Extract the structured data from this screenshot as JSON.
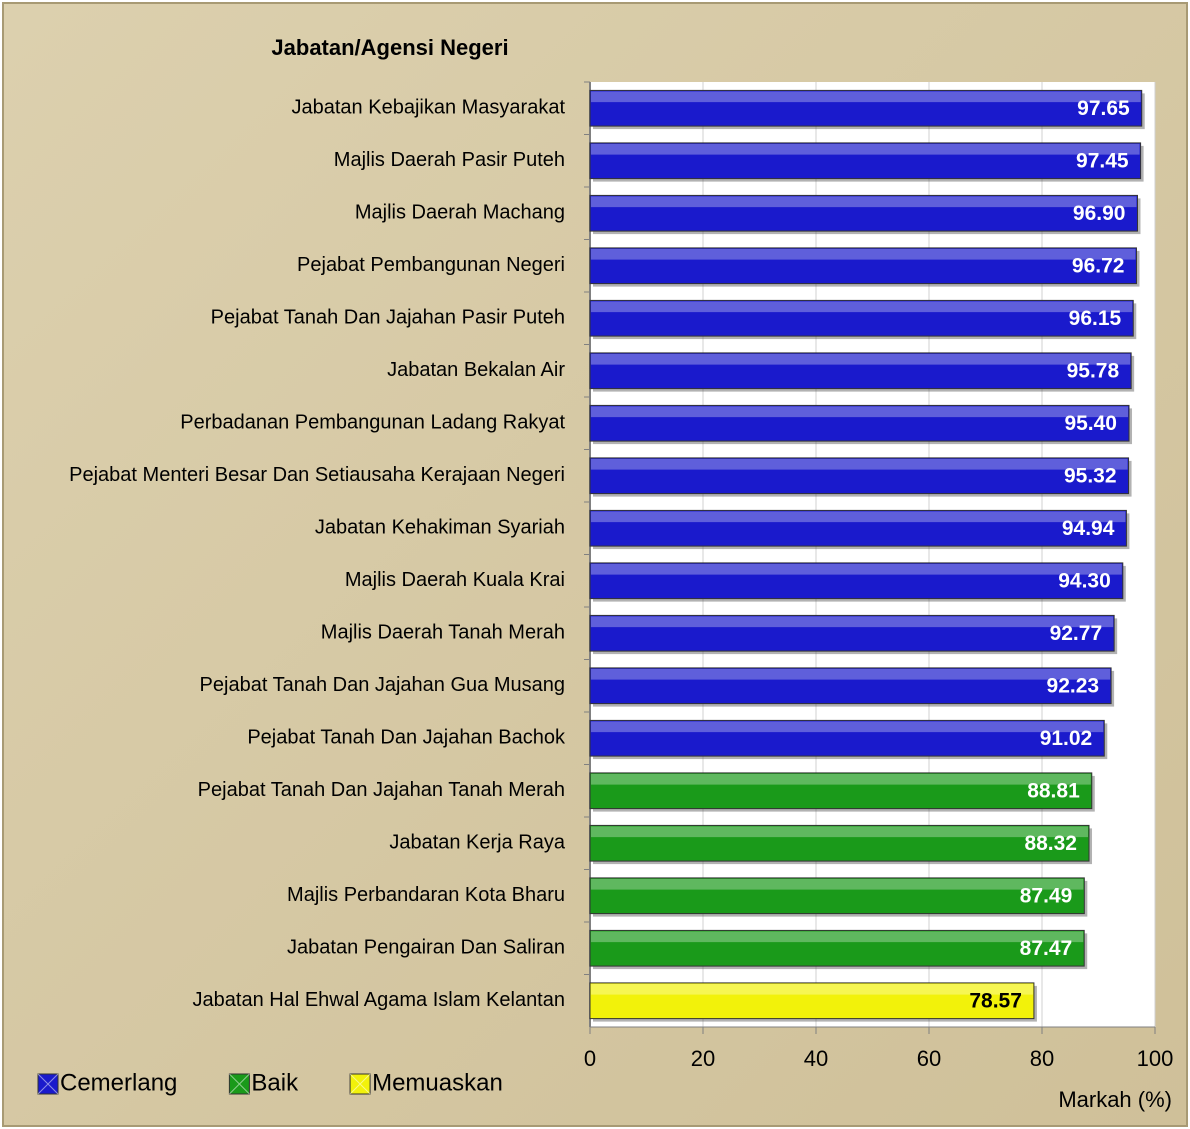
{
  "chart_data": {
    "type": "bar",
    "orientation": "horizontal",
    "title": "Jabatan/Agensi Negeri",
    "x_label": "Markah (%)",
    "categories": [
      "Jabatan Kebajikan Masyarakat",
      "Majlis Daerah Pasir Puteh",
      "Majlis Daerah Machang",
      "Pejabat Pembangunan Negeri",
      "Pejabat Tanah Dan Jajahan Pasir Puteh",
      "Jabatan Bekalan Air",
      "Perbadanan Pembangunan Ladang Rakyat",
      "Pejabat Menteri Besar Dan Setiausaha Kerajaan Negeri",
      "Jabatan Kehakiman Syariah",
      "Majlis Daerah Kuala Krai",
      "Majlis Daerah Tanah Merah",
      "Pejabat Tanah Dan Jajahan Gua Musang",
      "Pejabat Tanah Dan Jajahan Bachok",
      "Pejabat Tanah Dan Jajahan Tanah Merah",
      "Jabatan Kerja Raya",
      "Majlis Perbandaran Kota Bharu",
      "Jabatan Pengairan Dan Saliran",
      "Jabatan Hal Ehwal Agama Islam Kelantan"
    ],
    "series": [
      {
        "name": "Cemerlang",
        "color": "#1a1acc",
        "label_color": "#ffffff",
        "values": [
          97.65,
          97.45,
          96.9,
          96.72,
          96.15,
          95.78,
          95.4,
          95.32,
          94.94,
          94.3,
          92.77,
          92.23,
          91.02,
          null,
          null,
          null,
          null,
          null
        ],
        "value_labels": [
          "97.65",
          "97.45",
          "96.90",
          "96.72",
          "96.15",
          "95.78",
          "95.40",
          "95.32",
          "94.94",
          "94.30",
          "92.77",
          "92.23",
          "91.02",
          null,
          null,
          null,
          null,
          null
        ]
      },
      {
        "name": "Baik",
        "color": "#1a9a1a",
        "label_color": "#ffffff",
        "values": [
          null,
          null,
          null,
          null,
          null,
          null,
          null,
          null,
          null,
          null,
          null,
          null,
          null,
          88.81,
          88.32,
          87.49,
          87.47,
          null
        ],
        "value_labels": [
          null,
          null,
          null,
          null,
          null,
          null,
          null,
          null,
          null,
          null,
          null,
          null,
          null,
          "88.81",
          "88.32",
          "87.49",
          "87.47",
          null
        ]
      },
      {
        "name": "Memuaskan",
        "color": "#f2f20a",
        "label_color": "#000000",
        "values": [
          null,
          null,
          null,
          null,
          null,
          null,
          null,
          null,
          null,
          null,
          null,
          null,
          null,
          null,
          null,
          null,
          null,
          78.57
        ],
        "value_labels": [
          null,
          null,
          null,
          null,
          null,
          null,
          null,
          null,
          null,
          null,
          null,
          null,
          null,
          null,
          null,
          null,
          null,
          "78.57"
        ]
      }
    ],
    "xlim": [
      0,
      100
    ],
    "xticks": [
      0,
      20,
      40,
      60,
      80,
      100
    ],
    "grid": true,
    "legend": "bottom-left"
  }
}
